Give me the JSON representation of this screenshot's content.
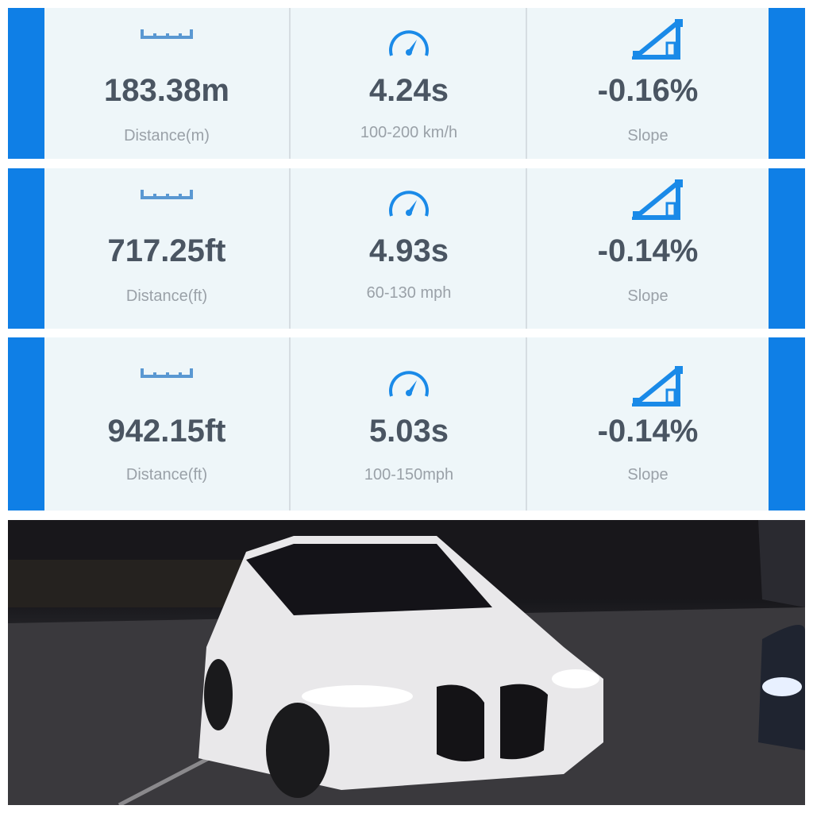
{
  "rows": [
    {
      "distance": "183.38m",
      "distance_label": "Distance(m)",
      "time": "4.24s",
      "time_label": "100-200 km/h",
      "slope": "-0.16%",
      "slope_label": "Slope"
    },
    {
      "distance": "717.25ft",
      "distance_label": "Distance(ft)",
      "time": "4.93s",
      "time_label": "60-130 mph",
      "slope": "-0.14%",
      "slope_label": "Slope"
    },
    {
      "distance": "942.15ft",
      "distance_label": "Distance(ft)",
      "time": "5.03s",
      "time_label": "100-150mph",
      "slope": "-0.14%",
      "slope_label": "Slope"
    }
  ],
  "icons": {
    "distance": "ruler-icon",
    "time": "speedometer-icon",
    "slope": "slope-icon"
  },
  "colors": {
    "accent": "#0f7fe6",
    "panel": "#eef6f9",
    "value": "#4a5562",
    "label": "#9aa1a8"
  }
}
